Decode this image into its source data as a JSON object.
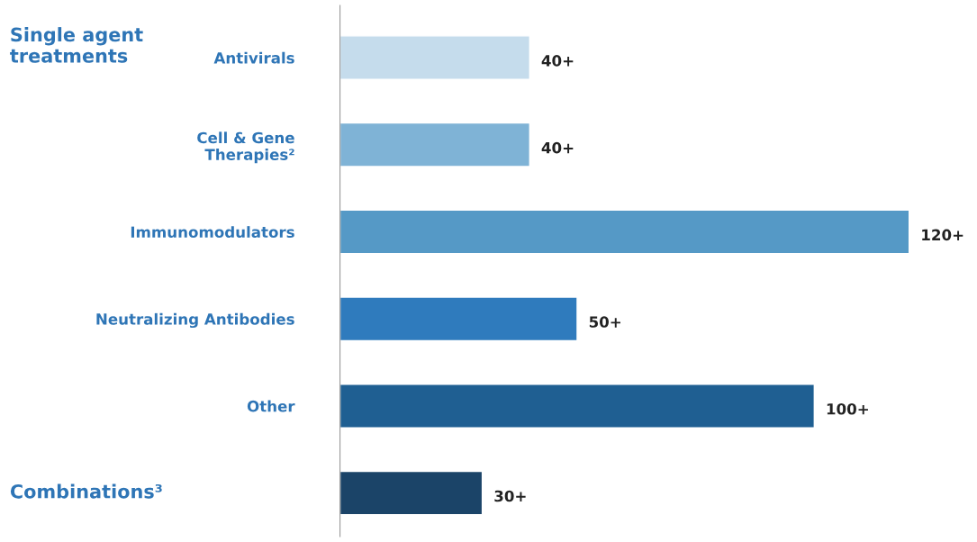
{
  "chart_data": {
    "type": "bar",
    "orientation": "horizontal",
    "categories": [
      "Antivirals",
      "Cell & Gene\nTherapies²",
      "Immunomodulators",
      "Neutralizing Antibodies",
      "Other",
      null
    ],
    "values": [
      40,
      40,
      120,
      50,
      100,
      30
    ],
    "value_labels": [
      "40+",
      "40+",
      "120+",
      "50+",
      "100+",
      "30+"
    ],
    "colors": [
      "#c5dcec",
      "#7fb3d6",
      "#5599c6",
      "#2f7bbd",
      "#1f5f92",
      "#1b4468"
    ],
    "annotations": [
      "Single agent\ntreatments",
      "Combinations³"
    ],
    "grid": false,
    "legend": false
  }
}
